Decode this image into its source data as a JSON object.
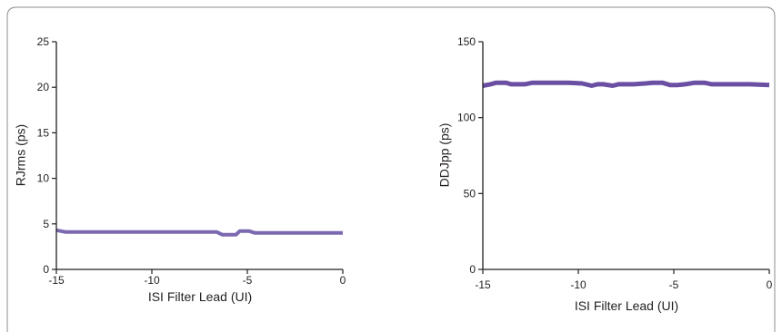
{
  "chart_data": [
    {
      "type": "line",
      "title": "",
      "xlabel": "ISI Filter Lead (UI)",
      "ylabel": "RJrms (ps)",
      "xlim": [
        -15,
        0
      ],
      "ylim": [
        0,
        25
      ],
      "xticks": [
        -15,
        -10,
        -5,
        0
      ],
      "yticks": [
        0,
        5,
        10,
        15,
        20,
        25
      ],
      "grid": false,
      "color": "#7b68b0",
      "series": [
        {
          "x": [
            -15,
            -14.5,
            -14,
            -13,
            -12,
            -11,
            -10,
            -9,
            -8,
            -7,
            -6.6,
            -6.3,
            -5.6,
            -5.4,
            -4.9,
            -4.6,
            -4,
            -3,
            -2,
            -1,
            0
          ],
          "y": [
            4.3,
            4.1,
            4.1,
            4.1,
            4.1,
            4.1,
            4.1,
            4.1,
            4.1,
            4.1,
            4.1,
            3.8,
            3.8,
            4.2,
            4.2,
            4.0,
            4.0,
            4.0,
            4.0,
            4.0,
            4.0
          ]
        }
      ]
    },
    {
      "type": "line",
      "title": "",
      "xlabel": "ISI Filter Lead (UI)",
      "ylabel": "DDJpp (ps)",
      "xlim": [
        -15,
        0
      ],
      "ylim": [
        0,
        150
      ],
      "xticks": [
        -15,
        -10,
        -5,
        0
      ],
      "yticks": [
        0,
        50,
        100,
        150
      ],
      "grid": false,
      "color": "#6a4fa3",
      "series": [
        {
          "x": [
            -15,
            -14.6,
            -14.3,
            -13.8,
            -13.5,
            -12.8,
            -12.4,
            -11.5,
            -10.5,
            -9.8,
            -9.3,
            -9.0,
            -8.7,
            -8.2,
            -7.9,
            -7.5,
            -7.1,
            -6.5,
            -6.1,
            -5.6,
            -5.2,
            -4.8,
            -4.4,
            -3.9,
            -3.4,
            -3.0,
            -2.0,
            -1.0,
            0
          ],
          "y": [
            121,
            122,
            123,
            123,
            122,
            122,
            123,
            123,
            123,
            122.5,
            121,
            122,
            122,
            121,
            122,
            122,
            122,
            122.5,
            123,
            123,
            121.5,
            121.5,
            122,
            123,
            123,
            122,
            122,
            122,
            121.5
          ]
        }
      ]
    }
  ]
}
